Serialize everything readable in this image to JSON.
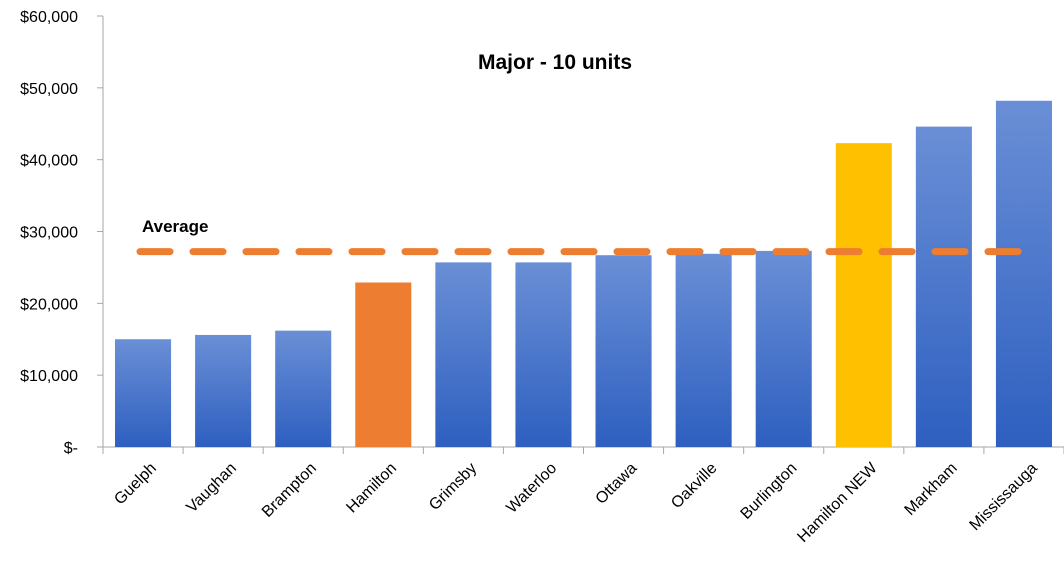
{
  "chart_data": {
    "type": "bar",
    "title": "Major - 10 units",
    "xlabel": "",
    "ylabel": "",
    "categories": [
      "Guelph",
      "Vaughan",
      "Brampton",
      "Hamilton",
      "Grimsby",
      "Waterloo",
      "Ottawa",
      "Oakville",
      "Burlington",
      "Hamilton NEW",
      "Markham",
      "Mississauga"
    ],
    "values": [
      15000,
      15600,
      16200,
      22900,
      25700,
      25700,
      26700,
      26900,
      27300,
      42300,
      44600,
      48200
    ],
    "bar_colors": [
      "#4472C4",
      "#4472C4",
      "#4472C4",
      "#ED7D31",
      "#4472C4",
      "#4472C4",
      "#4472C4",
      "#4472C4",
      "#4472C4",
      "#FFC000",
      "#4472C4",
      "#4472C4"
    ],
    "ylim": [
      0,
      60000
    ],
    "yticks": [
      0,
      10000,
      20000,
      30000,
      40000,
      50000,
      60000
    ],
    "ytick_labels": [
      "$-",
      "$10,000",
      "$20,000",
      "$30,000",
      "$40,000",
      "$50,000",
      "$60,000"
    ],
    "grid": false,
    "legend": "none",
    "average": {
      "label": "Average",
      "value": 27200,
      "color": "#ED7D31",
      "style": "dashed"
    },
    "colors": {
      "bar_top": "#6A8FD6",
      "bar_bottom": "#2E5FC0",
      "axis": "#A6A6A6",
      "text": "#000000"
    }
  }
}
